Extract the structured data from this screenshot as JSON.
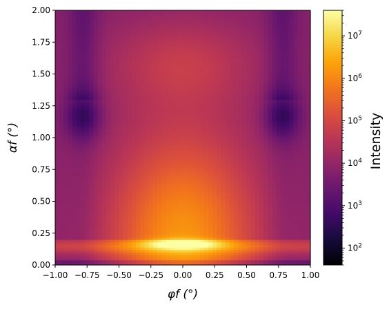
{
  "chart_data": {
    "type": "heatmap",
    "title": "",
    "xlabel": "φf (°)",
    "ylabel": "αf (°)",
    "xlim": [
      -1.0,
      1.0
    ],
    "ylim": [
      0.0,
      2.0
    ],
    "x_ticks": [
      "−1.00",
      "−0.75",
      "−0.50",
      "−0.25",
      "0.00",
      "0.25",
      "0.50",
      "0.75",
      "1.00"
    ],
    "y_ticks": [
      "0.00",
      "0.25",
      "0.50",
      "0.75",
      "1.00",
      "1.25",
      "1.50",
      "1.75",
      "2.00"
    ],
    "x_tick_values": [
      -1.0,
      -0.75,
      -0.5,
      -0.25,
      0.0,
      0.25,
      0.5,
      0.75,
      1.0
    ],
    "y_tick_values": [
      0.0,
      0.25,
      0.5,
      0.75,
      1.0,
      1.25,
      1.5,
      1.75,
      2.0
    ],
    "colormap": "inferno",
    "colorbar": {
      "label": "Intensity",
      "scale": "log",
      "range": [
        40,
        40000000
      ],
      "ticks": [
        {
          "value": 100,
          "base": "10",
          "exp": "2"
        },
        {
          "value": 1000,
          "base": "10",
          "exp": "3"
        },
        {
          "value": 10000,
          "base": "10",
          "exp": "4"
        },
        {
          "value": 100000,
          "base": "10",
          "exp": "5"
        },
        {
          "value": 1000000,
          "base": "10",
          "exp": "6"
        },
        {
          "value": 10000000,
          "base": "10",
          "exp": "7"
        }
      ]
    },
    "features": {
      "max_intensity": 30000000,
      "peak_location": [
        0.0,
        0.17
      ],
      "minima_locations": [
        [
          -0.78,
          1.17
        ],
        [
          0.78,
          1.17
        ]
      ],
      "min_intensity": 700
    },
    "grid": false
  }
}
